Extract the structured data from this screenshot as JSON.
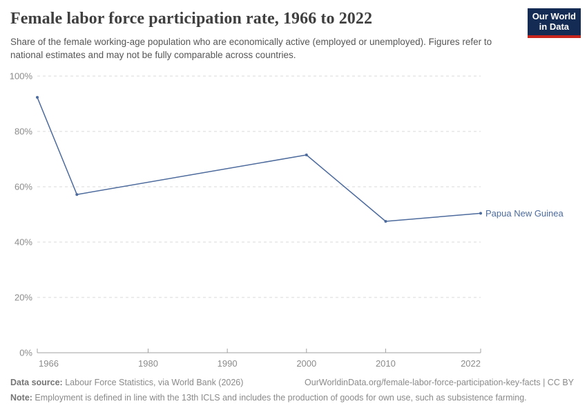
{
  "header": {
    "title": "Female labor force participation rate, 1966 to 2022",
    "subtitle": "Share of the female working-age population who are economically active (employed or unemployed). Figures refer to national estimates and may not be fully comparable across countries.",
    "logo": {
      "line1": "Our World",
      "line2": "in Data",
      "bg_color": "#142B54",
      "accent_color": "#C8251D"
    }
  },
  "chart_data": {
    "type": "line",
    "title": "Female labor force participation rate, 1966 to 2022",
    "xlabel": "",
    "ylabel": "",
    "xlim": [
      1966,
      2022
    ],
    "ylim": [
      0,
      100
    ],
    "grid": "dashed-horizontal",
    "legend_position": "end-of-line-label",
    "x_ticks": [
      1966,
      1980,
      1990,
      2000,
      2010,
      2022
    ],
    "x_tick_labels": [
      "1966",
      "1980",
      "1990",
      "2000",
      "2010",
      "2022"
    ],
    "y_ticks": [
      0,
      20,
      40,
      60,
      80,
      100
    ],
    "y_tick_labels": [
      "0%",
      "20%",
      "40%",
      "60%",
      "80%",
      "100%"
    ],
    "series": [
      {
        "name": "Papua New Guinea",
        "color": "#4C6A9C",
        "points": [
          {
            "x": 1966,
            "y": 92.3
          },
          {
            "x": 1971,
            "y": 57.2
          },
          {
            "x": 2000,
            "y": 71.5
          },
          {
            "x": 2010,
            "y": 47.5
          },
          {
            "x": 2022,
            "y": 50.4
          }
        ]
      }
    ],
    "colors": {
      "gridline": "#dadada",
      "axis_line": "#a1a1a1",
      "tick_text": "#8b8b8b"
    }
  },
  "footer": {
    "data_source_label": "Data source:",
    "data_source_text": " Labour Force Statistics, via World Bank (2026)",
    "citation": "OurWorldinData.org/female-labor-force-participation-key-facts | CC BY",
    "note_label": "Note:",
    "note_text": " Employment is defined in line with the 13th ICLS and includes the production of goods for own use, such as subsistence farming."
  }
}
